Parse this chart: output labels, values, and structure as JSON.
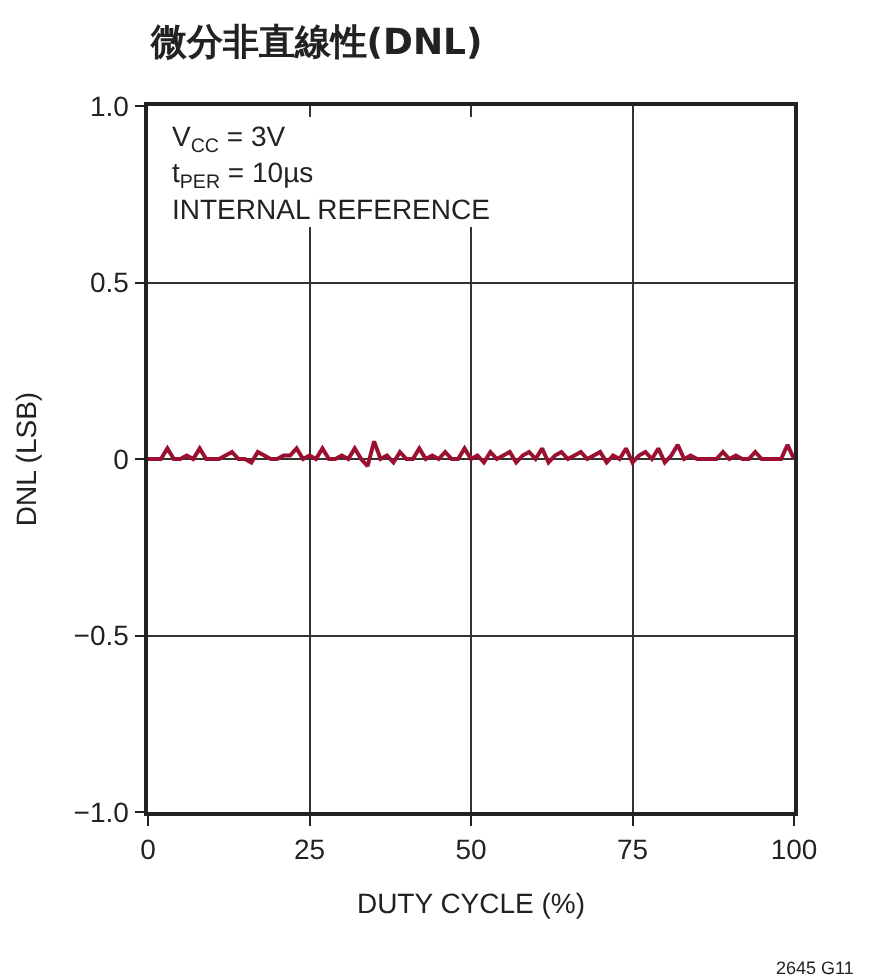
{
  "chart_data": {
    "type": "line",
    "title": "微分非直線性(DNL)",
    "xlabel": "DUTY CYCLE (%)",
    "ylabel": "DNL (LSB)",
    "x": [
      0,
      1,
      2,
      3,
      4,
      5,
      6,
      7,
      8,
      9,
      10,
      11,
      12,
      13,
      14,
      15,
      16,
      17,
      18,
      19,
      20,
      21,
      22,
      23,
      24,
      25,
      26,
      27,
      28,
      29,
      30,
      31,
      32,
      33,
      34,
      35,
      36,
      37,
      38,
      39,
      40,
      41,
      42,
      43,
      44,
      45,
      46,
      47,
      48,
      49,
      50,
      51,
      52,
      53,
      54,
      55,
      56,
      57,
      58,
      59,
      60,
      61,
      62,
      63,
      64,
      65,
      66,
      67,
      68,
      69,
      70,
      71,
      72,
      73,
      74,
      75,
      76,
      77,
      78,
      79,
      80,
      81,
      82,
      83,
      84,
      85,
      86,
      87,
      88,
      89,
      90,
      91,
      92,
      93,
      94,
      95,
      96,
      97,
      98,
      99,
      100
    ],
    "series": [
      {
        "color": "#9b0f30",
        "values": [
          0,
          0,
          0,
          0.03,
          0,
          0,
          0.01,
          0,
          0.03,
          0,
          0,
          0,
          0.01,
          0.02,
          0,
          0,
          -0.01,
          0.02,
          0.01,
          0,
          0,
          0.01,
          0.01,
          0.03,
          0,
          0.01,
          0,
          0.03,
          0,
          0,
          0.01,
          0,
          0.03,
          0,
          -0.02,
          0.05,
          0,
          0.01,
          -0.01,
          0.02,
          0,
          0,
          0.03,
          0,
          0.01,
          0,
          0.02,
          0,
          0,
          0.03,
          0,
          0.01,
          -0.01,
          0.02,
          0,
          0.01,
          0.02,
          -0.01,
          0.01,
          0.02,
          0,
          0.03,
          -0.01,
          0.01,
          0.02,
          0,
          0.01,
          0.02,
          0,
          0.01,
          0.02,
          -0.01,
          0.01,
          0,
          0.03,
          -0.01,
          0.01,
          0.02,
          0,
          0.03,
          -0.01,
          0.01,
          0.04,
          0,
          0.01,
          0,
          0,
          0,
          0,
          0.02,
          0,
          0.01,
          0,
          0,
          0.02,
          0,
          0,
          0,
          0,
          0.04,
          0
        ]
      }
    ],
    "xlim": [
      0,
      100
    ],
    "xticks": [
      0,
      25,
      50,
      75,
      100
    ],
    "ylim": [
      -1,
      1
    ],
    "yticks": [
      {
        "value": -1,
        "label": "−1.0"
      },
      {
        "value": -0.5,
        "label": "−0.5"
      },
      0,
      {
        "value": 0.5,
        "label": "0.5"
      },
      {
        "value": 1,
        "label": "1.0"
      }
    ],
    "grid": true,
    "annotations": [
      "V$_{CC}$ = 3V\nt$_{PER}$ = 10µs\nINTERNAL REFERENCE",
      "2645 G11"
    ]
  }
}
